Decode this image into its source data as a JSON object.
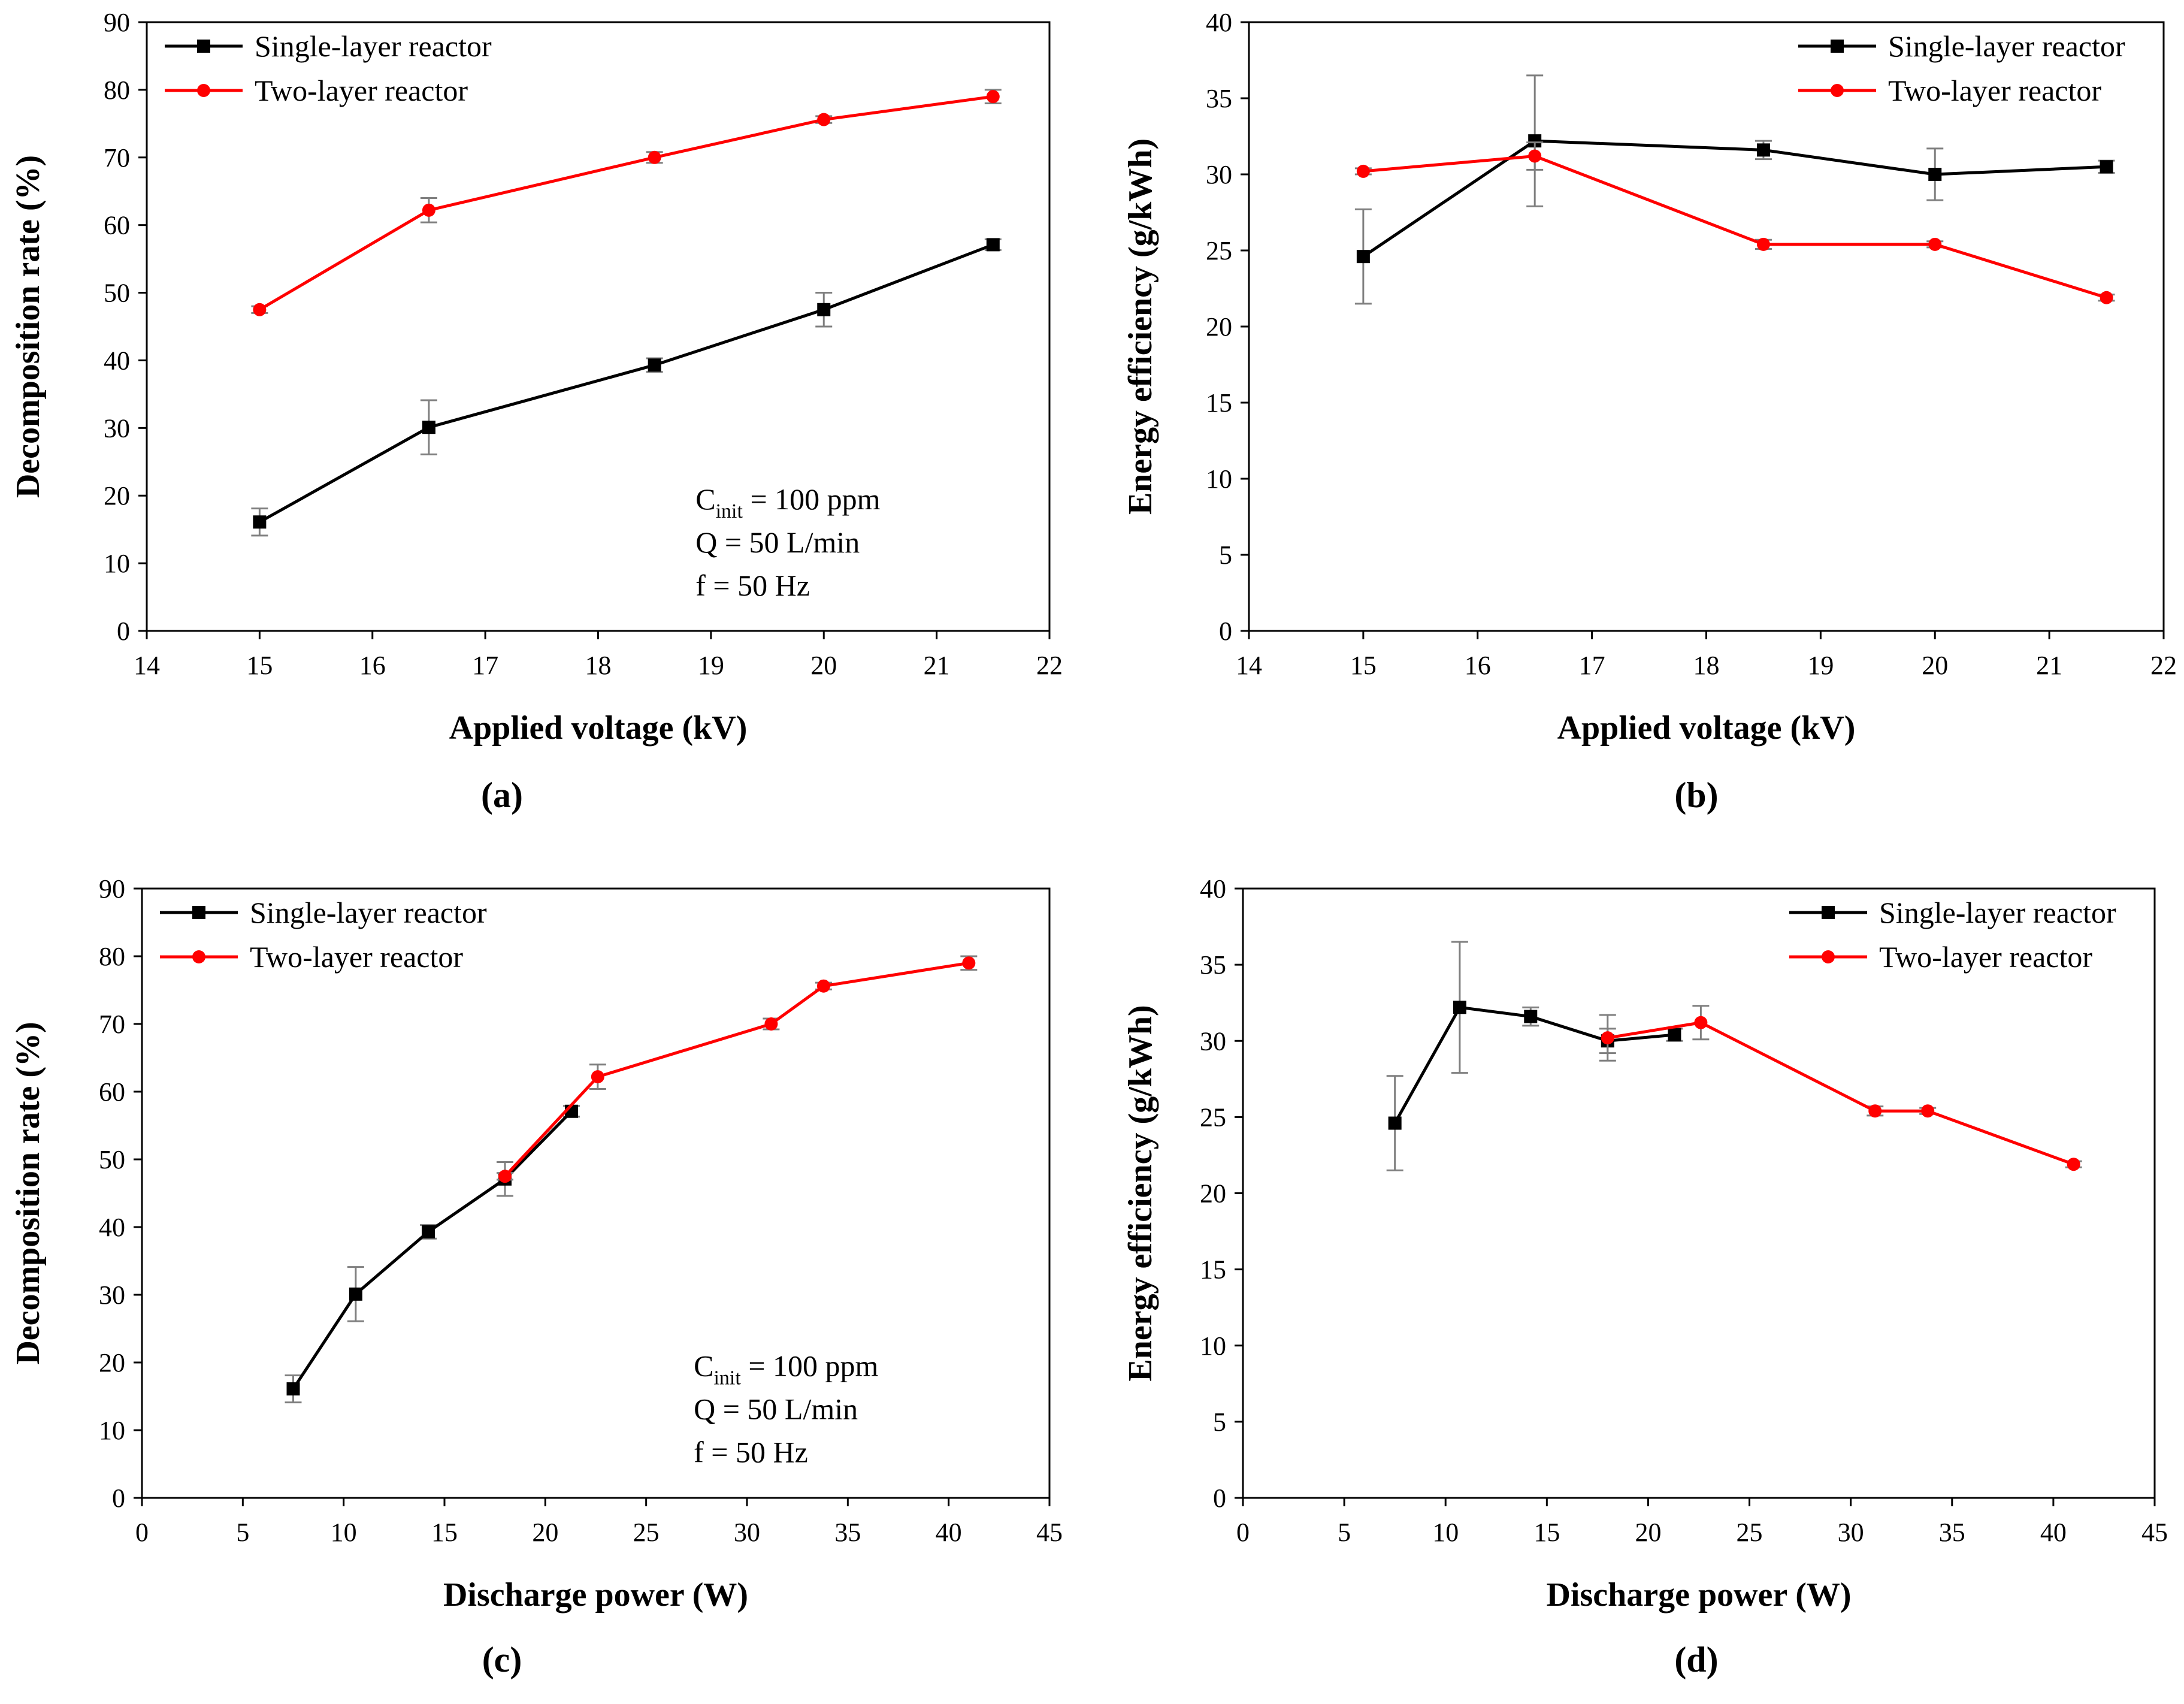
{
  "colors": {
    "single": "#000000",
    "two": "#ff0000",
    "error": "#7f7f7f"
  },
  "chart_data": [
    {
      "id": "a",
      "type": "line",
      "caption": "(a)",
      "xlabel": "Applied voltage (kV)",
      "ylabel": "Decomposition rate (%)",
      "xlim": [
        14,
        22
      ],
      "ylim": [
        0,
        90
      ],
      "xticks": [
        14,
        15,
        16,
        17,
        18,
        19,
        20,
        21,
        22
      ],
      "yticks": [
        0,
        10,
        20,
        30,
        40,
        50,
        60,
        70,
        80,
        90
      ],
      "legend_position": "top-left",
      "annotation": [
        "C",
        "init",
        " = 100 ppm",
        "Q = 50 L/min",
        "f = 50 Hz"
      ],
      "series": [
        {
          "name": "Single-layer reactor",
          "marker": "square",
          "x": [
            15,
            16.5,
            18.5,
            20,
            21.5
          ],
          "y": [
            16.1,
            30.1,
            39.3,
            47.5,
            57.1
          ],
          "err": [
            2,
            4,
            1,
            2.5,
            0.8
          ]
        },
        {
          "name": "Two-layer reactor",
          "marker": "circle",
          "x": [
            15,
            16.5,
            18.5,
            20,
            21.5
          ],
          "y": [
            47.5,
            62.2,
            70,
            75.6,
            79
          ],
          "err": [
            0.5,
            1.8,
            0.8,
            0.5,
            1
          ]
        }
      ]
    },
    {
      "id": "b",
      "type": "line",
      "caption": "(b)",
      "xlabel": "Applied voltage (kV)",
      "ylabel": "Energy efficiency (g/kWh)",
      "xlim": [
        14,
        22
      ],
      "ylim": [
        0,
        40
      ],
      "xticks": [
        14,
        15,
        16,
        17,
        18,
        19,
        20,
        21,
        22
      ],
      "yticks": [
        0,
        5,
        10,
        15,
        20,
        25,
        30,
        35,
        40
      ],
      "legend_position": "top-right",
      "series": [
        {
          "name": "Single-layer reactor",
          "marker": "square",
          "x": [
            15,
            16.5,
            18.5,
            20,
            21.5
          ],
          "y": [
            24.6,
            32.2,
            31.6,
            30,
            30.5
          ],
          "err": [
            3.1,
            4.3,
            0.6,
            1.7,
            0.4
          ]
        },
        {
          "name": "Two-layer reactor",
          "marker": "circle",
          "x": [
            15,
            16.5,
            18.5,
            20,
            21.5
          ],
          "y": [
            30.2,
            31.2,
            25.4,
            25.4,
            21.9
          ],
          "err": [
            0.2,
            0.9,
            0.3,
            0.2,
            0.2
          ]
        }
      ]
    },
    {
      "id": "c",
      "type": "line",
      "caption": "(c)",
      "xlabel": "Discharge power (W)",
      "ylabel": "Decomposition rate (%)",
      "xlim": [
        0,
        45
      ],
      "ylim": [
        0,
        90
      ],
      "xticks": [
        0,
        5,
        10,
        15,
        20,
        25,
        30,
        35,
        40,
        45
      ],
      "yticks": [
        0,
        10,
        20,
        30,
        40,
        50,
        60,
        70,
        80,
        90
      ],
      "legend_position": "top-left",
      "annotation": [
        "C",
        "init",
        " = 100 ppm",
        "Q = 50 L/min",
        "f = 50 Hz"
      ],
      "series": [
        {
          "name": "Single-layer reactor",
          "marker": "square",
          "x": [
            7.5,
            10.6,
            14.2,
            18,
            21.3
          ],
          "y": [
            16.1,
            30.1,
            39.3,
            47.1,
            57.1
          ],
          "err": [
            2,
            4,
            1,
            2.5,
            0.8
          ]
        },
        {
          "name": "Two-layer reactor",
          "marker": "circle",
          "x": [
            18,
            22.6,
            31.2,
            33.8,
            41
          ],
          "y": [
            47.5,
            62.2,
            70,
            75.6,
            79
          ],
          "err": [
            0.5,
            1.8,
            0.8,
            0.5,
            1
          ]
        }
      ]
    },
    {
      "id": "d",
      "type": "line",
      "caption": "(d)",
      "xlabel": "Discharge power (W)",
      "ylabel": "Energy efficiency (g/kWh)",
      "xlim": [
        0,
        45
      ],
      "ylim": [
        0,
        40
      ],
      "xticks": [
        0,
        5,
        10,
        15,
        20,
        25,
        30,
        35,
        40,
        45
      ],
      "yticks": [
        0,
        5,
        10,
        15,
        20,
        25,
        30,
        35,
        40
      ],
      "legend_position": "top-right",
      "series": [
        {
          "name": "Single-layer reactor",
          "marker": "square",
          "x": [
            7.5,
            10.7,
            14.2,
            18,
            21.3
          ],
          "y": [
            24.6,
            32.2,
            31.6,
            30,
            30.4
          ],
          "err": [
            3.1,
            4.3,
            0.6,
            0.8,
            0.4
          ]
        },
        {
          "name": "Two-layer reactor",
          "marker": "circle",
          "x": [
            18,
            22.6,
            31.2,
            33.8,
            41
          ],
          "y": [
            30.2,
            31.2,
            25.4,
            25.4,
            21.9
          ],
          "err": [
            1.5,
            1.1,
            0.3,
            0.2,
            0.2
          ]
        }
      ]
    }
  ]
}
